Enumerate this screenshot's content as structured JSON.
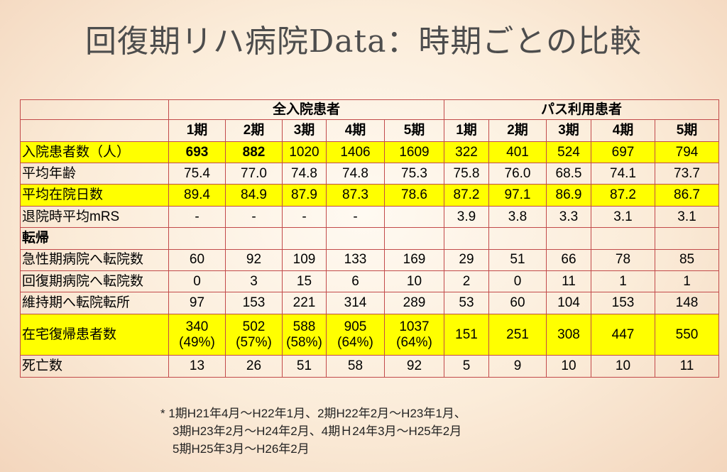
{
  "title": "回復期リハ病院Data：時期ごとの比較",
  "groups": {
    "all": "全入院患者",
    "path": "パス利用患者"
  },
  "periods": [
    "1期",
    "2期",
    "3期",
    "4期",
    "5期"
  ],
  "section_tenki": "転帰",
  "rows": {
    "admissions": {
      "label": "入院患者数（人）",
      "values": [
        "693",
        "882",
        "1020",
        "1406",
        "1609",
        "322",
        "401",
        "524",
        "697",
        "794"
      ]
    },
    "avg_age": {
      "label": "平均年齢",
      "values": [
        "75.4",
        "77.0",
        "74.8",
        "74.8",
        "75.3",
        "75.8",
        "76.0",
        "68.5",
        "74.1",
        "73.7"
      ]
    },
    "avg_stay": {
      "label": "平均在院日数",
      "values": [
        "89.4",
        "84.9",
        "87.9",
        "87.3",
        "78.6",
        "87.2",
        "97.1",
        "86.9",
        "87.2",
        "86.7"
      ]
    },
    "mrs": {
      "label": "退院時平均mRS",
      "values": [
        "-",
        "-",
        "-",
        "-",
        "",
        "3.9",
        "3.8",
        "3.3",
        "3.1",
        "3.1"
      ]
    },
    "acute": {
      "label": "急性期病院へ転院数",
      "values": [
        "60",
        "92",
        "109",
        "133",
        "169",
        "29",
        "51",
        "66",
        "78",
        "85"
      ]
    },
    "recovery": {
      "label": "回復期病院へ転院数",
      "values": [
        "0",
        "3",
        "15",
        "6",
        "10",
        "2",
        "0",
        "11",
        "1",
        "1"
      ]
    },
    "maintenance": {
      "label": "維持期へ転院転所",
      "values": [
        "97",
        "153",
        "221",
        "314",
        "289",
        "53",
        "60",
        "104",
        "153",
        "148"
      ]
    },
    "home": {
      "label": "在宅復帰患者数",
      "values": [
        "340",
        "502",
        "588",
        "905",
        "1037",
        "151",
        "251",
        "308",
        "447",
        "550"
      ],
      "pct": [
        "(49%)",
        "(57%)",
        "(58%)",
        "(64%)",
        "(64%)"
      ]
    },
    "death": {
      "label": "死亡数",
      "values": [
        "13",
        "26",
        "51",
        "58",
        "92",
        "5",
        "9",
        "10",
        "10",
        "11"
      ]
    }
  },
  "footnote": [
    "* 1期H21年4月～H22年1月、2期H22年2月～H23年1月、",
    "　3期H23年2月～H24年2月、4期Ｈ24年3月～H25年2月",
    "　5期H25年3月～H26年2月"
  ]
}
